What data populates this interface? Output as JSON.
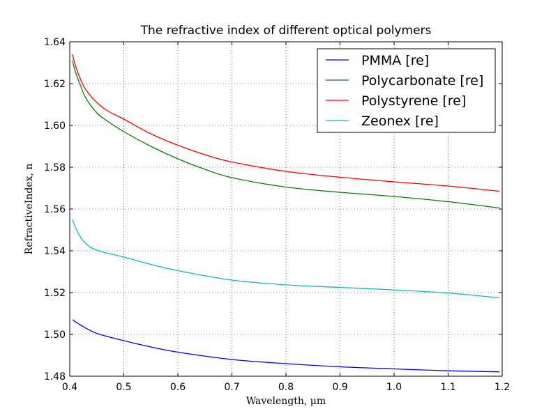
{
  "chart_data": {
    "type": "line",
    "title": "The refractive index of different optical polymers",
    "xlabel": "Wavelength, μm",
    "ylabel": "RefractiveIndex, n",
    "xlim": [
      0.4,
      1.2
    ],
    "ylim": [
      1.48,
      1.64
    ],
    "xticks": [
      0.4,
      0.5,
      0.6,
      0.7,
      0.8,
      0.9,
      1.0,
      1.1,
      1.2
    ],
    "xtick_labels": [
      "0.4",
      "0.5",
      "0.6",
      "0.7",
      "0.8",
      "0.9",
      "1.0",
      "1.1",
      "1.2"
    ],
    "yticks": [
      1.48,
      1.5,
      1.52,
      1.54,
      1.56,
      1.58,
      1.6,
      1.62,
      1.64
    ],
    "ytick_labels": [
      "1.48",
      "1.50",
      "1.52",
      "1.54",
      "1.56",
      "1.58",
      "1.60",
      "1.62",
      "1.64"
    ],
    "grid": true,
    "legend_position": "top-right",
    "series": [
      {
        "name": "PMMA [re]",
        "color": "#0000ff",
        "x": [
          0.405,
          0.42,
          0.45,
          0.5,
          0.55,
          0.6,
          0.7,
          0.8,
          0.9,
          1.0,
          1.1,
          1.195
        ],
        "y": [
          1.507,
          1.5045,
          1.5005,
          1.497,
          1.494,
          1.4915,
          1.488,
          1.486,
          1.4845,
          1.4835,
          1.4826,
          1.4821
        ]
      },
      {
        "name": "Polycarbonate [re]",
        "color": "#008000",
        "x": [
          0.405,
          0.41,
          0.42,
          0.43,
          0.45,
          0.47,
          0.5,
          0.55,
          0.6,
          0.65,
          0.7,
          0.8,
          0.9,
          1.0,
          1.1,
          1.195
        ],
        "y": [
          1.631,
          1.626,
          1.619,
          1.613,
          1.606,
          1.602,
          1.597,
          1.59,
          1.584,
          1.579,
          1.575,
          1.5705,
          1.568,
          1.566,
          1.5635,
          1.5605
        ]
      },
      {
        "name": "Polystyrene [re]",
        "color": "#ff0000",
        "x": [
          0.405,
          0.41,
          0.42,
          0.43,
          0.45,
          0.47,
          0.5,
          0.55,
          0.6,
          0.65,
          0.7,
          0.8,
          0.9,
          1.0,
          1.1,
          1.195
        ],
        "y": [
          1.634,
          1.629,
          1.622,
          1.617,
          1.611,
          1.607,
          1.603,
          1.596,
          1.5905,
          1.586,
          1.5825,
          1.578,
          1.5752,
          1.573,
          1.571,
          1.5685
        ]
      },
      {
        "name": "Zeonex [re]",
        "color": "#00bfbf",
        "x": [
          0.405,
          0.41,
          0.42,
          0.43,
          0.44,
          0.46,
          0.5,
          0.55,
          0.6,
          0.7,
          0.8,
          0.9,
          1.0,
          1.1,
          1.195
        ],
        "y": [
          1.555,
          1.5515,
          1.5465,
          1.5435,
          1.5415,
          1.5395,
          1.537,
          1.5335,
          1.5305,
          1.526,
          1.5237,
          1.5225,
          1.5213,
          1.5198,
          1.5175
        ]
      }
    ]
  }
}
